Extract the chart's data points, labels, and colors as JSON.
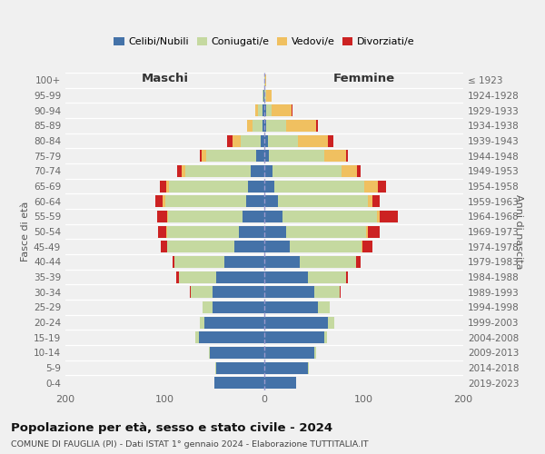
{
  "age_groups_bottom_to_top": [
    "0-4",
    "5-9",
    "10-14",
    "15-19",
    "20-24",
    "25-29",
    "30-34",
    "35-39",
    "40-44",
    "45-49",
    "50-54",
    "55-59",
    "60-64",
    "65-69",
    "70-74",
    "75-79",
    "80-84",
    "85-89",
    "90-94",
    "95-99",
    "100+"
  ],
  "birth_years_bottom_to_top": [
    "2019-2023",
    "2014-2018",
    "2009-2013",
    "2004-2008",
    "1999-2003",
    "1994-1998",
    "1989-1993",
    "1984-1988",
    "1979-1983",
    "1974-1978",
    "1969-1973",
    "1964-1968",
    "1959-1963",
    "1954-1958",
    "1949-1953",
    "1944-1948",
    "1939-1943",
    "1934-1938",
    "1929-1933",
    "1924-1928",
    "≤ 1923"
  ],
  "colors": {
    "celibi": "#4472a8",
    "coniugati": "#c5d9a0",
    "vedovi": "#f0c060",
    "divorziati": "#cc2222"
  },
  "maschi": {
    "celibi": [
      50,
      48,
      55,
      66,
      60,
      52,
      52,
      48,
      40,
      30,
      26,
      22,
      18,
      16,
      14,
      8,
      4,
      2,
      2,
      1,
      0
    ],
    "coniugati": [
      0,
      1,
      1,
      3,
      5,
      10,
      22,
      38,
      50,
      68,
      72,
      75,
      82,
      80,
      65,
      50,
      20,
      10,
      4,
      1,
      0
    ],
    "vedovi": [
      0,
      0,
      0,
      0,
      0,
      0,
      0,
      0,
      0,
      0,
      1,
      1,
      2,
      3,
      4,
      5,
      8,
      5,
      3,
      0,
      0
    ],
    "divorziati": [
      0,
      0,
      0,
      0,
      0,
      0,
      1,
      3,
      2,
      6,
      8,
      10,
      8,
      6,
      5,
      2,
      5,
      0,
      0,
      0,
      0
    ]
  },
  "femmine": {
    "celibi": [
      32,
      44,
      50,
      60,
      64,
      54,
      50,
      44,
      36,
      26,
      22,
      18,
      14,
      10,
      8,
      5,
      4,
      2,
      2,
      0,
      0
    ],
    "coniugati": [
      0,
      1,
      2,
      3,
      6,
      12,
      26,
      38,
      56,
      72,
      80,
      95,
      90,
      90,
      70,
      55,
      30,
      20,
      5,
      2,
      1
    ],
    "vedovi": [
      0,
      0,
      0,
      0,
      0,
      0,
      0,
      0,
      0,
      1,
      2,
      3,
      5,
      14,
      15,
      22,
      30,
      30,
      20,
      5,
      1
    ],
    "divorziati": [
      0,
      0,
      0,
      0,
      0,
      0,
      1,
      2,
      5,
      10,
      12,
      18,
      7,
      8,
      4,
      2,
      5,
      2,
      1,
      0,
      0
    ]
  },
  "title": "Popolazione per età, sesso e stato civile - 2024",
  "subtitle": "COMUNE DI FAUGLIA (PI) - Dati ISTAT 1° gennaio 2024 - Elaborazione TUTTITALIA.IT",
  "xlabel_left": "Maschi",
  "xlabel_right": "Femmine",
  "ylabel_left": "Fasce di età",
  "ylabel_right": "Anni di nascita",
  "xlim": 200,
  "legend_labels": [
    "Celibi/Nubili",
    "Coniugati/e",
    "Vedovi/e",
    "Divorziati/e"
  ],
  "background_color": "#f0f0f0"
}
